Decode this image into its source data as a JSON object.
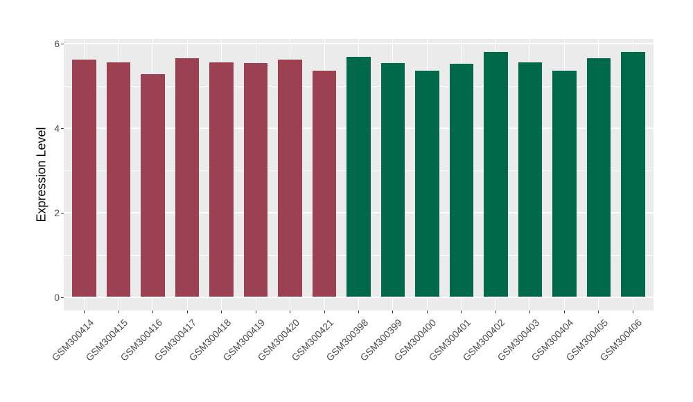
{
  "chart_data": {
    "type": "bar",
    "title": "",
    "xlabel": "",
    "ylabel": "Expression Level",
    "categories": [
      "GSM300414",
      "GSM300415",
      "GSM300416",
      "GSM300417",
      "GSM300418",
      "GSM300419",
      "GSM300420",
      "GSM300421",
      "GSM300398",
      "GSM300399",
      "GSM300400",
      "GSM300401",
      "GSM300402",
      "GSM300403",
      "GSM300404",
      "GSM300405",
      "GSM300406"
    ],
    "values": [
      5.61,
      5.55,
      5.27,
      5.64,
      5.55,
      5.53,
      5.61,
      5.35,
      5.68,
      5.53,
      5.35,
      5.52,
      5.79,
      5.55,
      5.36,
      5.65,
      5.8
    ],
    "group_of_bar": [
      0,
      0,
      0,
      0,
      0,
      0,
      0,
      0,
      1,
      1,
      1,
      1,
      1,
      1,
      1,
      1,
      1
    ],
    "group_colors": [
      "#9C4152",
      "#00694A"
    ],
    "yticks": [
      0,
      2,
      4,
      6
    ],
    "yticks_minor": [
      1,
      3,
      5
    ],
    "ylim": [
      0,
      6.1
    ],
    "bar_width_fraction": 0.7,
    "x_label_rotation_deg": 45,
    "grid": true,
    "legend": "none",
    "colors": {
      "panel_bg": "#EBEBEB",
      "grid": "#FFFFFF",
      "tick_mark": "#333333",
      "axis_text": "#4D4D4D",
      "axis_title": "#000000",
      "background": "#FFFFFF"
    }
  }
}
